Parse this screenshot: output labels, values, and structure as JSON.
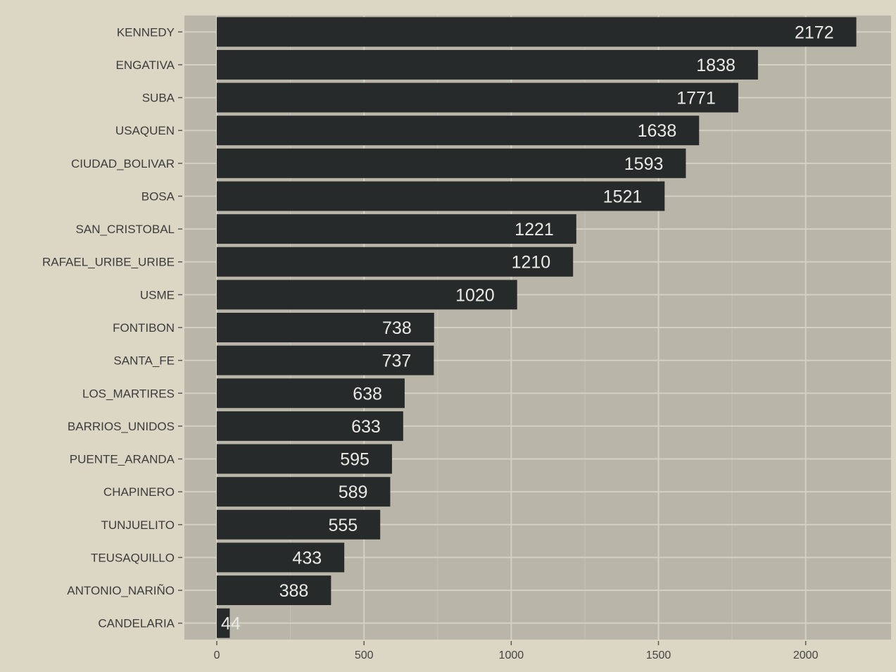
{
  "chart_data": {
    "type": "bar",
    "orientation": "horizontal",
    "title": "",
    "xlabel": "",
    "ylabel": "",
    "categories": [
      "KENNEDY",
      "ENGATIVA",
      "SUBA",
      "USAQUEN",
      "CIUDAD_BOLIVAR",
      "BOSA",
      "SAN_CRISTOBAL",
      "RAFAEL_URIBE_URIBE",
      "USME",
      "FONTIBON",
      "SANTA_FE",
      "LOS_MARTIRES",
      "BARRIOS_UNIDOS",
      "PUENTE_ARANDA",
      "CHAPINERO",
      "TUNJUELITO",
      "TEUSAQUILLO",
      "ANTONIO_NARIÑO",
      "CANDELARIA"
    ],
    "values": [
      2172,
      1838,
      1771,
      1638,
      1593,
      1521,
      1221,
      1210,
      1020,
      738,
      737,
      638,
      633,
      595,
      589,
      555,
      433,
      388,
      44
    ],
    "data_labels": [
      "2172",
      "1838",
      "1771",
      "1638",
      "1593",
      "1521",
      "1221",
      "1210",
      "1020",
      "738",
      "737",
      "638",
      "633",
      "595",
      "589",
      "555",
      "433",
      "388",
      "44"
    ],
    "xlim": [
      -110,
      2290
    ],
    "xticks": [
      0,
      500,
      1000,
      1500,
      2000
    ],
    "xtick_labels": [
      "0",
      "500",
      "1000",
      "1500",
      "2000"
    ],
    "grid": true,
    "legend": "none",
    "colors": {
      "bar": "#272a2a",
      "panel": "#b9b5a8",
      "background": "#dcd6c4",
      "grid_major": "#d4d0c4",
      "grid_minor": "#c6c2b6",
      "data_label": "#e9e9e6",
      "tick_text": "#3c3c3c"
    }
  }
}
